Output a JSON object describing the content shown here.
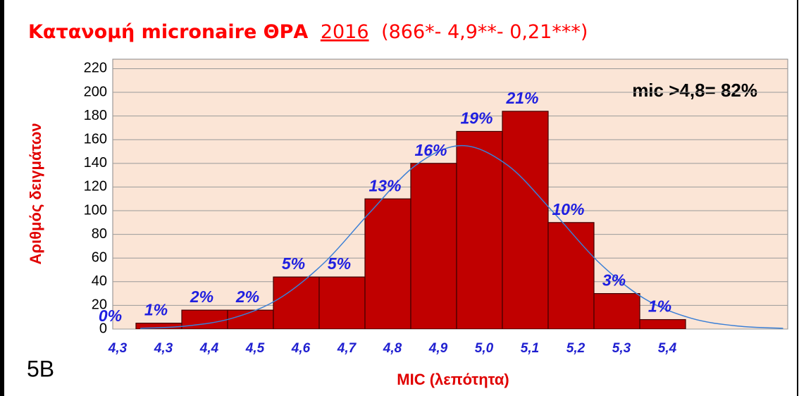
{
  "chart_data": {
    "type": "bar",
    "title_main": "Κατανομή micronaire ΘΡΑ",
    "title_year": "2016",
    "title_stats": "(866*- 4,9**- 0,21***)",
    "annotation": "mic >4,8= 82%",
    "panel_label": "5B",
    "ylabel": "Αριθμός δειγμάτων",
    "xlabel": "MIC (λεπότητα)",
    "categories": [
      "4,3",
      "4,3",
      "4,4",
      "4,5",
      "4,6",
      "4,7",
      "4,8",
      "4,9",
      "5,0",
      "5,1",
      "5,2",
      "5,3",
      "5,4"
    ],
    "values": [
      0,
      5,
      16,
      16,
      44,
      44,
      110,
      140,
      167,
      184,
      90,
      30,
      8
    ],
    "value_labels": [
      "0%",
      "1%",
      "2%",
      "2%",
      "5%",
      "5%",
      "13%",
      "16%",
      "19%",
      "21%",
      "10%",
      "3%",
      "1%"
    ],
    "color": "#c00000",
    "curve": {
      "color": "#3a7fd6",
      "x": [
        4.2,
        4.3,
        4.4,
        4.5,
        4.6,
        4.7,
        4.8,
        4.9,
        5.0,
        5.1,
        5.2,
        5.3,
        5.4,
        5.5,
        5.6
      ],
      "values": [
        0.6,
        2.6,
        9.1,
        25.2,
        55.8,
        98.5,
        138.4,
        155,
        138.4,
        98.5,
        55.8,
        25.2,
        9.1,
        2.6,
        0.6
      ]
    },
    "xlim": [
      4.14,
      5.61
    ],
    "ylim": [
      0,
      228
    ],
    "yticks": [
      0,
      20,
      40,
      60,
      80,
      100,
      120,
      140,
      160,
      180,
      200,
      220
    ],
    "grid": true
  }
}
